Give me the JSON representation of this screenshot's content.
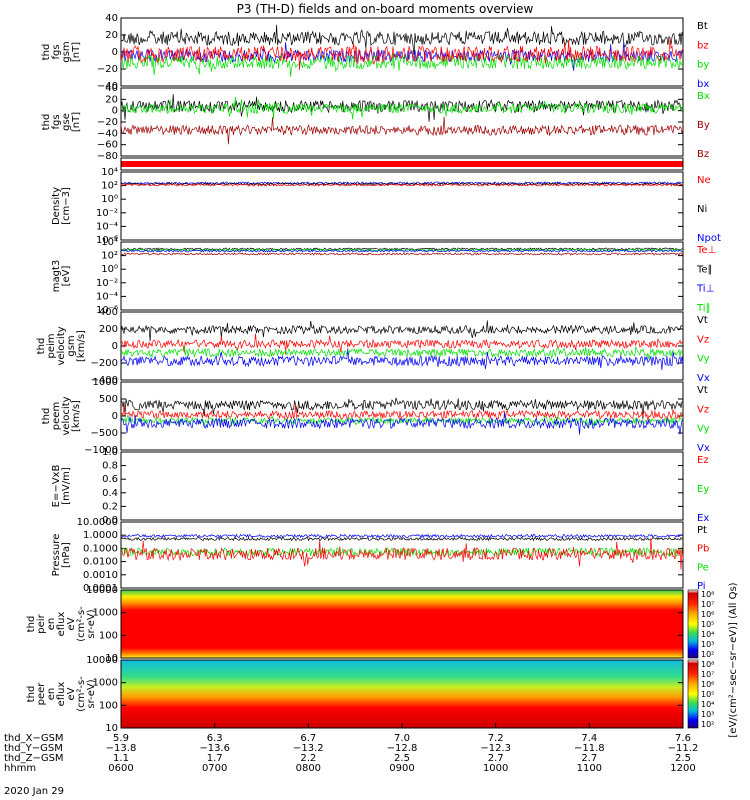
{
  "title": "P3 (TH-D) fields and on-board moments overview",
  "date": "2020 Jan 29",
  "colors": {
    "black": "#000000",
    "red": "#ff0000",
    "green": "#00e000",
    "blue": "#0000ff",
    "darkred": "#a00000"
  },
  "chart_data": {
    "type": "line",
    "x_range": [
      "0600",
      "1200"
    ],
    "panels": [
      {
        "id": "fgs-gsm",
        "ylabel": [
          "thd",
          "fgs",
          "gsm",
          "[nT]"
        ],
        "ylim": [
          -40,
          40
        ],
        "ticks": [
          "40",
          "20",
          "0",
          "−20",
          "−40"
        ],
        "legend": [
          {
            "name": "Bt",
            "color": "black"
          },
          {
            "name": "bz",
            "color": "red"
          },
          {
            "name": "by",
            "color": "green"
          },
          {
            "name": "bx",
            "color": "blue"
          }
        ]
      },
      {
        "id": "fgs-gse",
        "ylabel": [
          "thd",
          "fgs",
          "gse",
          "[nT]"
        ],
        "ylim": [
          -80,
          40
        ],
        "ticks": [
          "40",
          "20",
          "0",
          "−20",
          "−40",
          "−60",
          "−80"
        ],
        "legend": [
          {
            "name": "Bx",
            "color": "green"
          },
          {
            "name": "By",
            "color": "darkred"
          },
          {
            "name": "Bz",
            "color": "darkred"
          }
        ]
      },
      {
        "id": "mode",
        "ylabel": [],
        "ylim": [
          0,
          1
        ],
        "ticks": [],
        "legend": []
      },
      {
        "id": "density",
        "ylabel": [
          "Density",
          "[cm−3]"
        ],
        "ylim": [
          -6,
          4
        ],
        "ticks": [
          "10⁴",
          "10²",
          "10⁰",
          "10⁻²",
          "10⁻⁴",
          "10⁻⁶"
        ],
        "legend": [
          {
            "name": "Ne",
            "color": "red"
          },
          {
            "name": "Ni",
            "color": "black"
          },
          {
            "name": "Npot",
            "color": "blue"
          }
        ]
      },
      {
        "id": "temperature",
        "ylabel": [
          "magt3",
          "[eV]"
        ],
        "ylim": [
          -6,
          4
        ],
        "ticks": [
          "10⁴",
          "10²",
          "10⁰",
          "10⁻²",
          "10⁻⁴",
          "10⁻⁶"
        ],
        "legend": [
          {
            "name": "Te⊥",
            "color": "red"
          },
          {
            "name": "Te∥",
            "color": "black"
          },
          {
            "name": "Ti⊥",
            "color": "blue"
          },
          {
            "name": "Ti∥",
            "color": "green"
          }
        ]
      },
      {
        "id": "peim-velocity",
        "ylabel": [
          "thd",
          "peim",
          "velocity",
          "gsm",
          "[km/s]"
        ],
        "ylim": [
          -400,
          400
        ],
        "ticks": [
          "400",
          "200",
          "0",
          "−200",
          "−400"
        ],
        "legend": [
          {
            "name": "Vt",
            "color": "black"
          },
          {
            "name": "Vz",
            "color": "red"
          },
          {
            "name": "Vy",
            "color": "green"
          },
          {
            "name": "Vx",
            "color": "blue"
          }
        ]
      },
      {
        "id": "peem-velocity",
        "ylabel": [
          "thd",
          "peem",
          "velocity",
          "[km/s]"
        ],
        "ylim": [
          -1000,
          1000
        ],
        "ticks": [
          "1000",
          "500",
          "0",
          "−500",
          "−1000"
        ],
        "legend": [
          {
            "name": "Vt",
            "color": "black"
          },
          {
            "name": "Vz",
            "color": "red"
          },
          {
            "name": "Vy",
            "color": "green"
          },
          {
            "name": "Vx",
            "color": "blue"
          }
        ]
      },
      {
        "id": "efield",
        "ylabel": [
          "E=−VxB",
          "[mV/m]"
        ],
        "ylim": [
          0,
          1
        ],
        "ticks": [
          "1.0",
          "0.8",
          "0.6",
          "0.4",
          "0.2",
          "0.0"
        ],
        "legend": [
          {
            "name": "Ez",
            "color": "red"
          },
          {
            "name": "Ey",
            "color": "green"
          },
          {
            "name": "Ex",
            "color": "blue"
          }
        ]
      },
      {
        "id": "pressure",
        "ylabel": [
          "Pressure",
          "[nPa]"
        ],
        "ylim": [
          -4,
          1
        ],
        "ticks": [
          "10.0000",
          "1.0000",
          "0.1000",
          "0.0100",
          "0.0010",
          "0.0001"
        ],
        "legend": [
          {
            "name": "Pt",
            "color": "black"
          },
          {
            "name": "Pb",
            "color": "red"
          },
          {
            "name": "Pe",
            "color": "green"
          },
          {
            "name": "Pi",
            "color": "blue"
          }
        ]
      },
      {
        "id": "peir-eflux",
        "ylabel": [
          "thd",
          "peir",
          "en",
          "eflux",
          "eV",
          "(cm²-s-",
          "sr-eV)"
        ],
        "ylim": [
          5,
          20000
        ],
        "ticks": [
          "10000",
          "1000",
          "100",
          "10"
        ],
        "legend": []
      },
      {
        "id": "peer-eflux",
        "ylabel": [
          "thd",
          "peer",
          "en",
          "eflux",
          "eV",
          "(cm²-s-",
          "sr-eV)"
        ],
        "ylim": [
          5,
          20000
        ],
        "ticks": [
          "10000",
          "1000",
          "100",
          "10"
        ],
        "legend": []
      }
    ],
    "colorbar": {
      "label": "[eV/(cm²−sec−sr−eV)] (All Qs)",
      "ticks": [
        "10⁸",
        "10⁷",
        "10⁶",
        "10⁵",
        "10⁴",
        "10³",
        "10²"
      ]
    },
    "xaxis": {
      "row_labels": [
        "thd_X−GSM",
        "thd_Y−GSM",
        "thd_Z−GSM",
        "hhmm"
      ],
      "columns": [
        {
          "values": [
            "5.9",
            "−13.8",
            "1.1",
            "0600"
          ]
        },
        {
          "values": [
            "6.3",
            "−13.6",
            "1.7",
            "0700"
          ]
        },
        {
          "values": [
            "6.7",
            "−13.2",
            "2.2",
            "0800"
          ]
        },
        {
          "values": [
            "7.0",
            "−12.8",
            "2.5",
            "0900"
          ]
        },
        {
          "values": [
            "7.2",
            "−12.3",
            "2.7",
            "1000"
          ]
        },
        {
          "values": [
            "7.4",
            "−11.8",
            "2.7",
            "1100"
          ]
        },
        {
          "values": [
            "7.6",
            "−11.2",
            "2.5",
            "1200"
          ]
        }
      ]
    }
  }
}
